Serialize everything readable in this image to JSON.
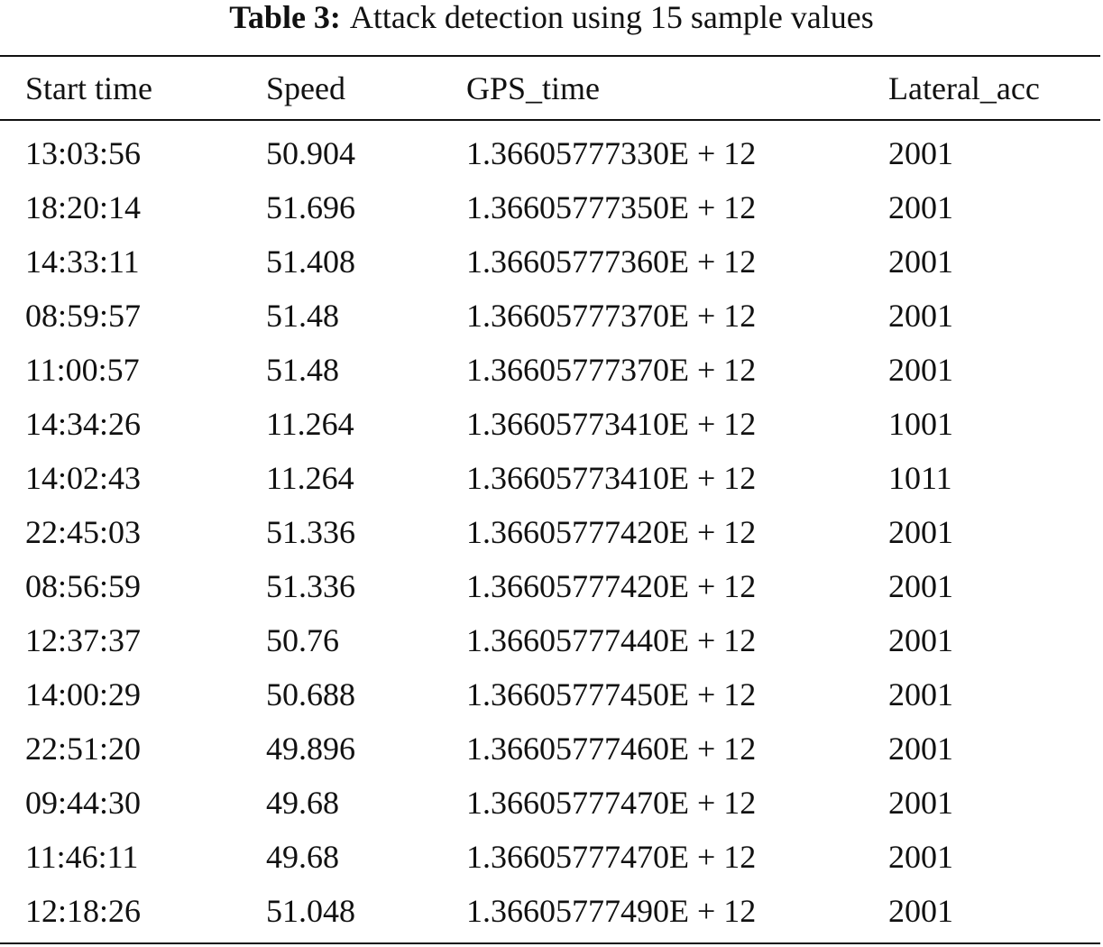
{
  "caption": {
    "label": "Table 3:",
    "text": "Attack detection using 15 sample values"
  },
  "table": {
    "headers": [
      "Start time",
      "Speed",
      "GPS_time",
      "Lateral_acc"
    ],
    "rows": [
      [
        "13:03:56",
        "50.904",
        "1.36605777330E + 12",
        "2001"
      ],
      [
        "18:20:14",
        "51.696",
        "1.36605777350E + 12",
        "2001"
      ],
      [
        "14:33:11",
        "51.408",
        "1.36605777360E + 12",
        "2001"
      ],
      [
        "08:59:57",
        "51.48",
        "1.36605777370E + 12",
        "2001"
      ],
      [
        "11:00:57",
        "51.48",
        "1.36605777370E + 12",
        "2001"
      ],
      [
        "14:34:26",
        "11.264",
        "1.36605773410E + 12",
        "1001"
      ],
      [
        "14:02:43",
        "11.264",
        "1.36605773410E + 12",
        "1011"
      ],
      [
        "22:45:03",
        "51.336",
        "1.36605777420E + 12",
        "2001"
      ],
      [
        "08:56:59",
        "51.336",
        "1.36605777420E + 12",
        "2001"
      ],
      [
        "12:37:37",
        "50.76",
        "1.36605777440E + 12",
        "2001"
      ],
      [
        "14:00:29",
        "50.688",
        "1.36605777450E + 12",
        "2001"
      ],
      [
        "22:51:20",
        "49.896",
        "1.36605777460E + 12",
        "2001"
      ],
      [
        "09:44:30",
        "49.68",
        "1.36605777470E + 12",
        "2001"
      ],
      [
        "11:46:11",
        "49.68",
        "1.36605777470E + 12",
        "2001"
      ],
      [
        "12:18:26",
        "51.048",
        "1.36605777490E + 12",
        "2001"
      ]
    ]
  }
}
